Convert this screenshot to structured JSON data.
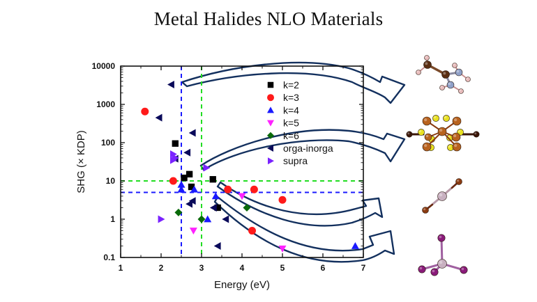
{
  "title": "Metal Halides NLO Materials",
  "chart_data": {
    "type": "scatter",
    "title": "Metal Halides NLO Materials",
    "xlabel": "Energy (eV)",
    "ylabel": "SHG (× KDP)",
    "xlim": [
      1,
      7
    ],
    "ylim": [
      0.1,
      10000
    ],
    "yscale": "log",
    "xticks": [
      "1",
      "2",
      "3",
      "4",
      "5",
      "6",
      "7"
    ],
    "yticks": [
      "0.1",
      "1",
      "10",
      "100",
      "1000",
      "10000"
    ],
    "grid": false,
    "legend_position": "top-right-inside",
    "reference_lines": [
      {
        "orientation": "vertical",
        "value": 2.5,
        "color": "#1a1aff"
      },
      {
        "orientation": "vertical",
        "value": 3.0,
        "color": "#22dd22"
      },
      {
        "orientation": "horizontal",
        "value": 10,
        "color": "#22dd22"
      },
      {
        "orientation": "horizontal",
        "value": 5,
        "color": "#1a1aff"
      }
    ],
    "series": [
      {
        "name": "k=2",
        "marker": "square",
        "color": "#000000",
        "points": [
          [
            2.35,
            95
          ],
          [
            2.57,
            12
          ],
          [
            2.7,
            15
          ],
          [
            2.75,
            7
          ],
          [
            3.28,
            11
          ],
          [
            3.4,
            2
          ]
        ]
      },
      {
        "name": "k=3",
        "marker": "circle",
        "color": "#ff1a1a",
        "points": [
          [
            1.6,
            650
          ],
          [
            2.3,
            10
          ],
          [
            3.65,
            6
          ],
          [
            4.3,
            6
          ],
          [
            5.0,
            3.2
          ],
          [
            4.25,
            0.5
          ]
        ]
      },
      {
        "name": "k=4",
        "marker": "triangle-up",
        "color": "#1a1aff",
        "points": [
          [
            2.5,
            8
          ],
          [
            2.5,
            6
          ],
          [
            2.82,
            6
          ],
          [
            3.35,
            4
          ],
          [
            3.15,
            1
          ],
          [
            6.8,
            0.2
          ]
        ]
      },
      {
        "name": "k=5",
        "marker": "triangle-down",
        "color": "#ff22ff",
        "points": [
          [
            4.0,
            4
          ],
          [
            2.8,
            0.5
          ],
          [
            5.0,
            0.17
          ]
        ]
      },
      {
        "name": "k=6",
        "marker": "diamond",
        "color": "#0a6a0a",
        "points": [
          [
            2.43,
            1.5
          ],
          [
            3.0,
            1
          ],
          [
            4.12,
            2
          ]
        ]
      },
      {
        "name": "orga-inorga",
        "marker": "triangle-left",
        "color": "#0a0a5a",
        "points": [
          [
            2.25,
            3300
          ],
          [
            1.95,
            450
          ],
          [
            2.78,
            180
          ],
          [
            2.65,
            55
          ],
          [
            2.78,
            3
          ],
          [
            2.7,
            2.5
          ],
          [
            3.3,
            2
          ],
          [
            3.6,
            1
          ],
          [
            3.4,
            0.2
          ],
          [
            2.35,
            38
          ]
        ]
      },
      {
        "name": "supra",
        "marker": "triangle-right",
        "color": "#7a22ff",
        "points": [
          [
            2.0,
            1
          ],
          [
            2.3,
            50
          ],
          [
            2.35,
            40
          ],
          [
            2.3,
            35
          ],
          [
            3.12,
            22
          ]
        ]
      }
    ]
  },
  "structures": [
    {
      "name": "organic-ammonium-molecule"
    },
    {
      "name": "metal-halide-cluster"
    },
    {
      "name": "linear-trihalide"
    },
    {
      "name": "tetrahedral-metal-halide"
    }
  ]
}
